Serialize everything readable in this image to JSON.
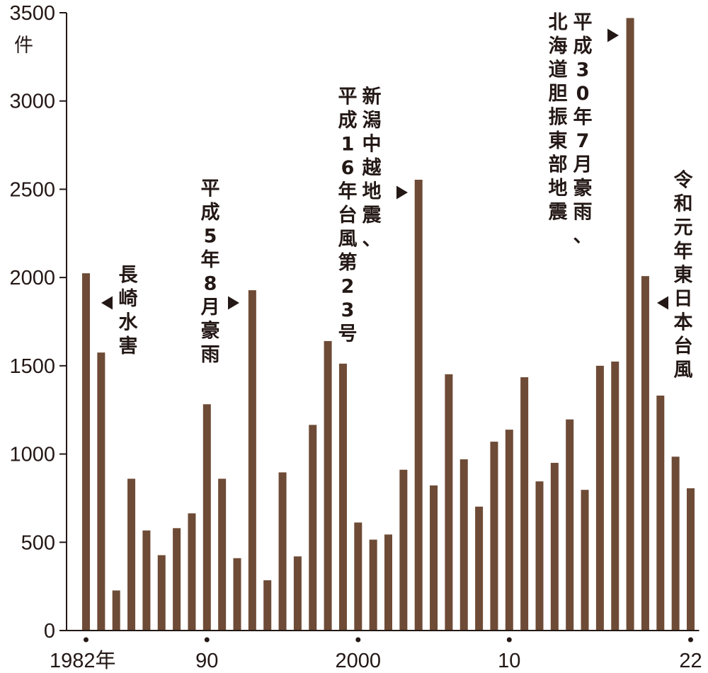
{
  "chart_data": {
    "type": "bar",
    "unit": "件",
    "ylim": [
      0,
      3500
    ],
    "yticks": [
      0,
      500,
      1000,
      1500,
      2000,
      2500,
      3000,
      3500
    ],
    "x": [
      1982,
      1983,
      1984,
      1985,
      1986,
      1987,
      1988,
      1989,
      1990,
      1991,
      1992,
      1993,
      1994,
      1995,
      1996,
      1997,
      1998,
      1999,
      2000,
      2001,
      2002,
      2003,
      2004,
      2005,
      2006,
      2007,
      2008,
      2009,
      2010,
      2011,
      2012,
      2013,
      2014,
      2015,
      2016,
      2017,
      2018,
      2019,
      2020,
      2021,
      2022
    ],
    "values": [
      2024,
      1575,
      227,
      860,
      567,
      427,
      580,
      664,
      1282,
      860,
      410,
      1928,
      285,
      896,
      420,
      1165,
      1640,
      1512,
      612,
      515,
      544,
      911,
      2554,
      822,
      1452,
      970,
      702,
      1070,
      1138,
      1435,
      845,
      950,
      1196,
      797,
      1500,
      1524,
      3470,
      2008,
      1331,
      985,
      806
    ],
    "xticks": [
      {
        "year": 1982,
        "label": "1982年"
      },
      {
        "year": 1990,
        "label": "90"
      },
      {
        "year": 2000,
        "label": "2000"
      },
      {
        "year": 2010,
        "label": "10"
      },
      {
        "year": 2022,
        "label": "22"
      }
    ],
    "annotations": [
      {
        "year": 1983,
        "lines": [
          "長崎水害"
        ]
      },
      {
        "year": 1993,
        "lines": [
          "平成5年8月豪雨"
        ]
      },
      {
        "year": 2004,
        "lines": [
          "平成16年台風第23号",
          "新潟中越地震、"
        ]
      },
      {
        "year": 2018,
        "lines": [
          "北海道胆振東部地震",
          "平成30年7月豪雨、"
        ]
      },
      {
        "year": 2019,
        "lines": [
          "令和元年東日本台風"
        ]
      }
    ],
    "bar_color": "#6e4b36",
    "grid": false,
    "legend": "none"
  }
}
